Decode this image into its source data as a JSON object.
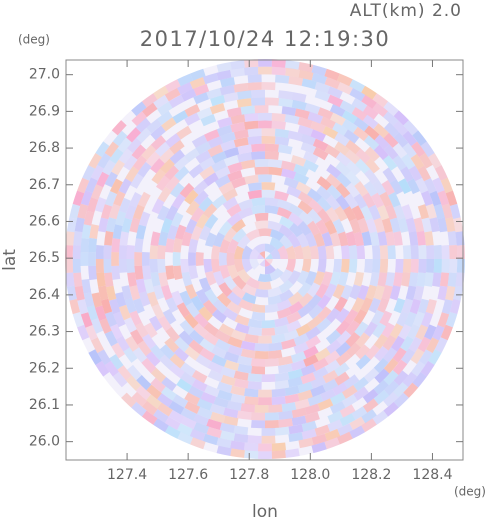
{
  "chart_data": {
    "type": "radar",
    "title": "2017/10/24 12:19:30",
    "subtitle": "ALT(km) 2.0",
    "x_label": "lon",
    "y_label": "lat",
    "x_unit": "(deg)",
    "y_unit": "(deg)",
    "xlim": [
      127.2,
      128.5
    ],
    "xticks": [
      127.4,
      127.6,
      127.8,
      {
        "value": 128,
        "label": "128.0"
      },
      128.2,
      128.4
    ],
    "ylim": [
      25.95,
      27.04
    ],
    "yticks": [
      {
        "value": 26,
        "label": "26.0"
      },
      26.1,
      26.2,
      26.3,
      26.4,
      26.5,
      26.6,
      26.7,
      26.8,
      26.9,
      {
        "value": 27,
        "label": "27.0"
      }
    ]
  }
}
